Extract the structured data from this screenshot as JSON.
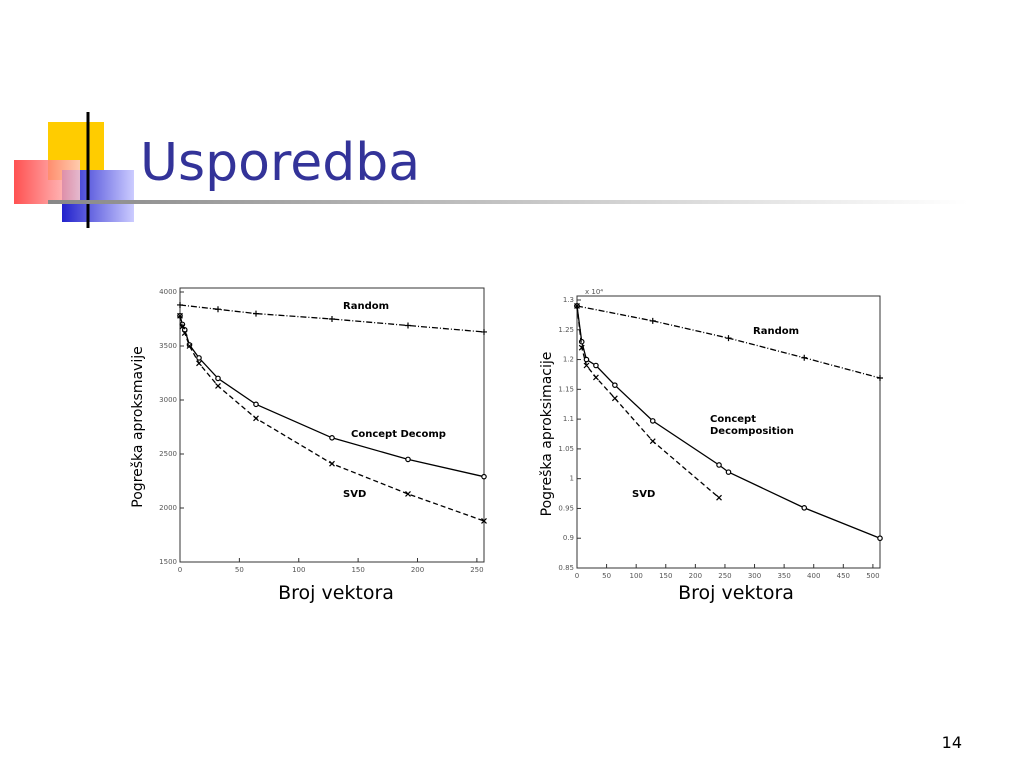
{
  "slide": {
    "title": "Usporedba",
    "page_number": "14"
  },
  "chart_data": [
    {
      "type": "line",
      "x_label": "Broj vektora",
      "y_label": "Pogreška aproksmavije",
      "xlim": [
        0,
        256
      ],
      "xticks": [
        0,
        50,
        100,
        150,
        200,
        250
      ],
      "ylim": [
        1500,
        4000
      ],
      "yticks": [
        1500,
        2000,
        2500,
        3000,
        3500,
        4000
      ],
      "series": [
        {
          "name": "Random",
          "color": "#000000",
          "x": [
            0,
            32,
            64,
            128,
            192,
            256
          ],
          "values": [
            3880,
            3840,
            3800,
            3750,
            3690,
            3630
          ]
        },
        {
          "name": "Concept Decomp",
          "color": "#000000",
          "x": [
            0,
            2,
            4,
            8,
            16,
            32,
            64,
            128,
            192,
            256
          ],
          "values": [
            3780,
            3700,
            3650,
            3510,
            3390,
            3200,
            2960,
            2650,
            2450,
            2290
          ]
        },
        {
          "name": "SVD",
          "color": "#000000",
          "x": [
            0,
            2,
            4,
            8,
            16,
            32,
            64,
            128,
            192,
            256
          ],
          "values": [
            3780,
            3680,
            3620,
            3500,
            3340,
            3130,
            2830,
            2410,
            2130,
            1880
          ]
        }
      ]
    },
    {
      "type": "line",
      "x_label": "Broj vektora",
      "y_label": "Pogreška aproksimacije",
      "y_multiplier": "x 10⁴",
      "xlim": [
        0,
        512
      ],
      "xticks": [
        0,
        50,
        100,
        150,
        200,
        250,
        300,
        350,
        400,
        450,
        500
      ],
      "ylim": [
        0.85,
        1.3
      ],
      "yticks": [
        0.85,
        0.9,
        0.95,
        1,
        1.05,
        1.1,
        1.15,
        1.2,
        1.25,
        1.3
      ],
      "series": [
        {
          "name": "Random",
          "color": "#000000",
          "x": [
            0,
            128,
            256,
            384,
            512
          ],
          "values": [
            1.29,
            1.265,
            1.236,
            1.203,
            1.169
          ]
        },
        {
          "name": "Concept Decomposition",
          "color": "#000000",
          "x": [
            0,
            8,
            16,
            32,
            64,
            128,
            240,
            256,
            384,
            512
          ],
          "values": [
            1.29,
            1.23,
            1.2,
            1.19,
            1.157,
            1.097,
            1.023,
            1.011,
            0.951,
            0.9
          ]
        },
        {
          "name": "SVD",
          "color": "#000000",
          "x": [
            0,
            8,
            16,
            32,
            64,
            128,
            240
          ],
          "values": [
            1.29,
            1.22,
            1.19,
            1.17,
            1.135,
            1.063,
            0.968
          ]
        }
      ]
    }
  ]
}
